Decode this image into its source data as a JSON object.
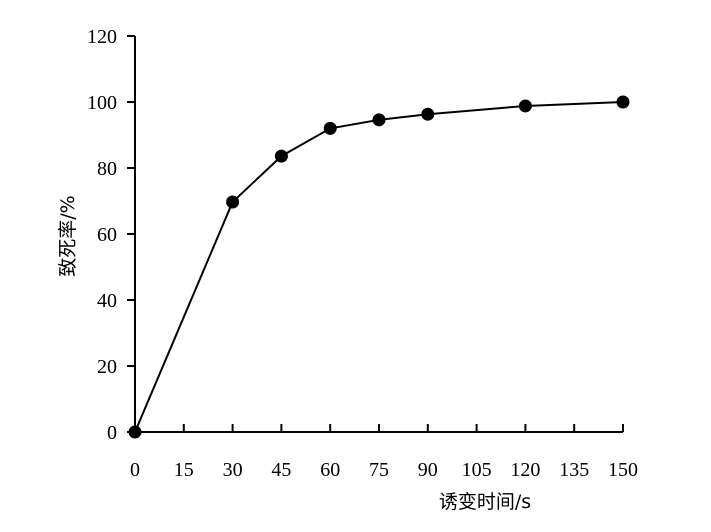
{
  "chart_data": {
    "type": "line",
    "title": "",
    "xlabel": "诱变时间/s",
    "ylabel": "致死率/%",
    "xlim": [
      0,
      150
    ],
    "ylim": [
      0,
      120
    ],
    "x_ticks": [
      0,
      15,
      30,
      45,
      60,
      75,
      90,
      105,
      120,
      135,
      150
    ],
    "y_ticks": [
      0,
      20,
      40,
      60,
      80,
      100,
      120
    ],
    "grid": false,
    "legend": "none",
    "series": [
      {
        "x": [
          0,
          30,
          45,
          60,
          75,
          90,
          120,
          150
        ],
        "y": [
          0,
          69.7,
          83.6,
          92.0,
          94.6,
          96.3,
          98.8,
          100.0
        ],
        "color": "#000000",
        "marker": "filled-circle"
      }
    ]
  }
}
